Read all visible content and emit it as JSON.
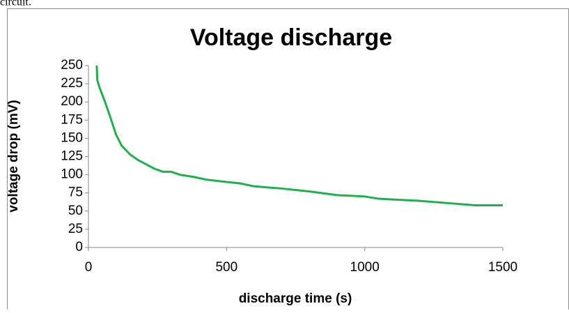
{
  "text": "circuit.",
  "chart_data": {
    "type": "line",
    "title": "Voltage discharge",
    "x_label": "discharge time (s)",
    "y_label": "voltage drop (mV)",
    "x": [
      30,
      32,
      40,
      60,
      80,
      100,
      120,
      150,
      180,
      210,
      240,
      270,
      300,
      330,
      380,
      430,
      500,
      550,
      600,
      700,
      800,
      900,
      950,
      1000,
      1050,
      1100,
      1200,
      1300,
      1400,
      1500
    ],
    "series": [
      {
        "name": "voltage drop",
        "color": "#1fb04c",
        "values": [
          250,
          230,
          220,
          200,
          178,
          155,
          140,
          128,
          120,
          114,
          108,
          104,
          104,
          100,
          97,
          93,
          90,
          88,
          84,
          81,
          77,
          72,
          71,
          70,
          67,
          66,
          64,
          61,
          58,
          58
        ]
      }
    ],
    "xlim": [
      0,
      1500
    ],
    "xticks": [
      0,
      500,
      1000,
      1500
    ],
    "ylim": [
      0,
      250
    ],
    "yticks": [
      0,
      25,
      50,
      75,
      100,
      125,
      150,
      175,
      200,
      225,
      250
    ]
  }
}
